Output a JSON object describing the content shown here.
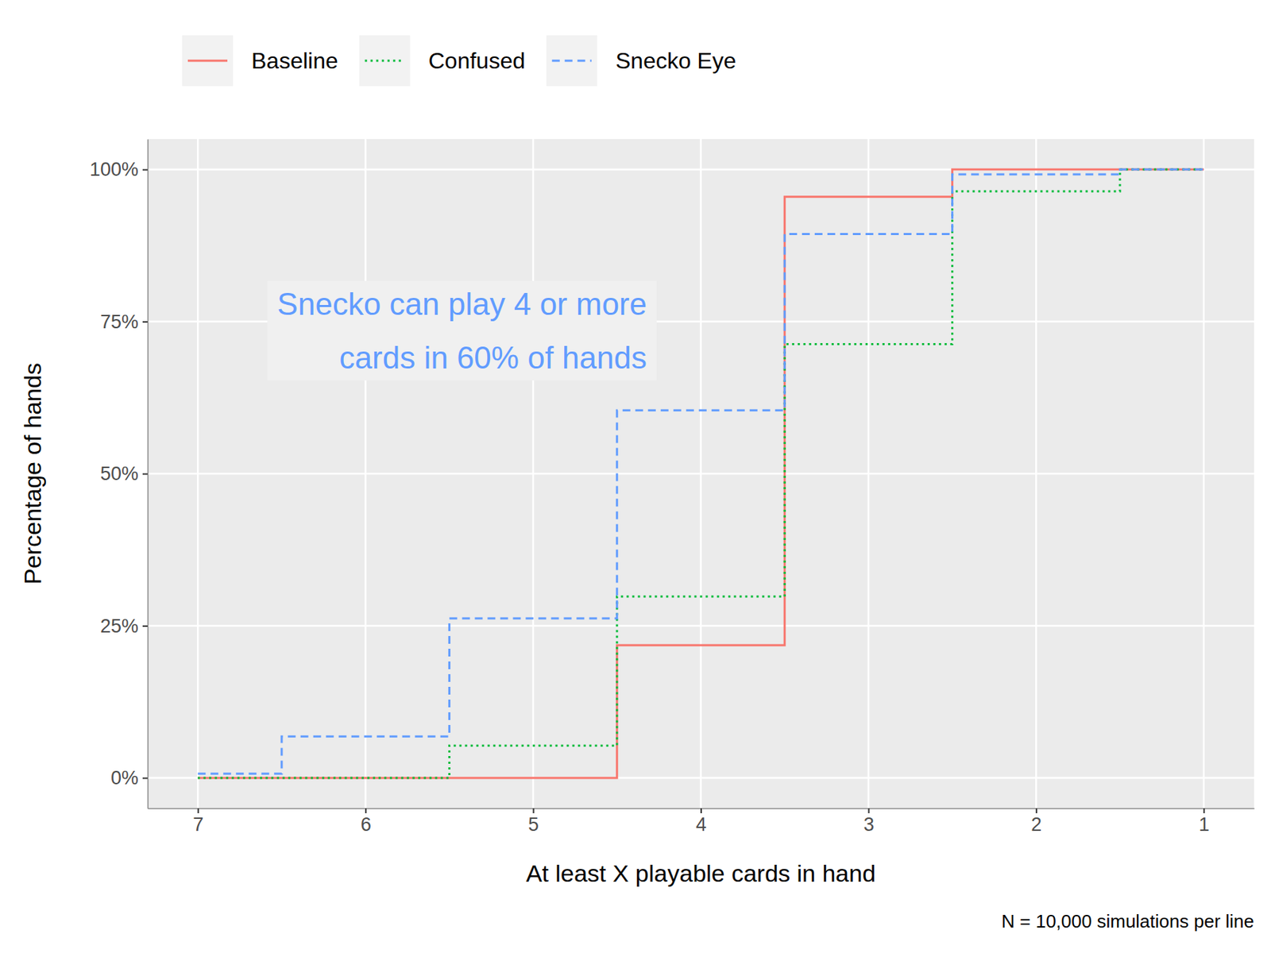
{
  "chart_data": {
    "type": "line",
    "x_label": "At least X playable cards in hand",
    "y_label": "Percentage of hands",
    "caption": "N = 10,000 simulations per line",
    "x": [
      7,
      6,
      5,
      4,
      3,
      2,
      1
    ],
    "series": [
      {
        "name": "Baseline",
        "color": "#f8766d",
        "line_style": "solid",
        "values": [
          0,
          0,
          0,
          21.8,
          95.5,
          100,
          100
        ]
      },
      {
        "name": "Confused",
        "color": "#00ba38",
        "line_style": "dotted",
        "values": [
          0,
          0,
          5.3,
          29.8,
          71.3,
          96.4,
          100
        ]
      },
      {
        "name": "Snecko Eye",
        "color": "#619cff",
        "line_style": "dashed",
        "values": [
          0.7,
          6.8,
          26.2,
          60.4,
          89.4,
          99.2,
          100
        ]
      }
    ],
    "xlim": [
      7.3,
      0.7
    ],
    "xticks": [
      7,
      6,
      5,
      4,
      3,
      2,
      1
    ],
    "ylim": [
      -5,
      105
    ],
    "yticks": [
      {
        "value": 0,
        "label": "0%"
      },
      {
        "value": 25,
        "label": "25%"
      },
      {
        "value": 50,
        "label": "50%"
      },
      {
        "value": 75,
        "label": "75%"
      },
      {
        "value": 100,
        "label": "100%"
      }
    ],
    "grid": true,
    "legend": "top",
    "annotations": [
      {
        "text": [
          "Snecko can play 4 or more",
          "cards in 60% of hands"
        ],
        "color": "#619cff"
      }
    ]
  }
}
